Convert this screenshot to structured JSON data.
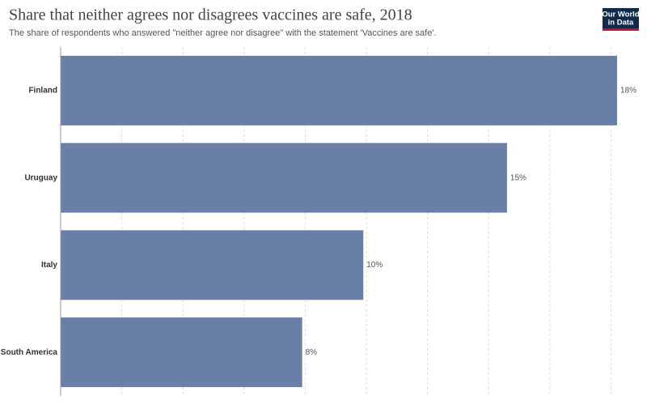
{
  "chart_data": {
    "type": "hbar",
    "title": "Share that neither agrees nor disagrees vaccines are safe, 2018",
    "subtitle": "The share of respondents who answered \"neither agree nor disagree\" with the statement 'Vaccines are safe'.",
    "categories": [
      "Finland",
      "Uruguay",
      "Italy",
      "South America"
    ],
    "values": [
      18.2,
      14.6,
      9.9,
      7.9
    ],
    "value_labels": [
      "18%",
      "15%",
      "10%",
      "8%"
    ],
    "color": "#6a7fa8",
    "xlim": [
      0,
      18.2
    ],
    "xticks": [
      2,
      4,
      6,
      8,
      10,
      12,
      14,
      16,
      18
    ],
    "grid": true
  },
  "logo": [
    "Our World",
    "in Data"
  ]
}
